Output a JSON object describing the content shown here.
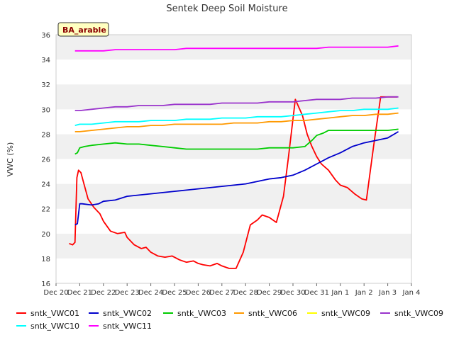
{
  "chart_data": {
    "type": "line",
    "title": "Sentek Deep Soil Moisture",
    "xlabel": "",
    "ylabel": "VWC (%)",
    "badge": "BA_arable",
    "ylim": [
      16,
      36
    ],
    "yticks": [
      16,
      18,
      20,
      22,
      24,
      26,
      28,
      30,
      32,
      34,
      36
    ],
    "xlim": [
      0,
      15
    ],
    "xticks": [
      {
        "x": 0,
        "label": "Dec 20"
      },
      {
        "x": 1,
        "label": "Dec 21"
      },
      {
        "x": 2,
        "label": "Dec 22"
      },
      {
        "x": 3,
        "label": "Dec 23"
      },
      {
        "x": 4,
        "label": "Dec 24"
      },
      {
        "x": 5,
        "label": "Dec 25"
      },
      {
        "x": 6,
        "label": "Dec 26"
      },
      {
        "x": 7,
        "label": "Dec 27"
      },
      {
        "x": 8,
        "label": "Dec 28"
      },
      {
        "x": 9,
        "label": "Dec 29"
      },
      {
        "x": 10,
        "label": "Dec 30"
      },
      {
        "x": 11,
        "label": "Dec 31"
      },
      {
        "x": 12,
        "label": "Jan 1"
      },
      {
        "x": 13,
        "label": "Jan 2"
      },
      {
        "x": 14,
        "label": "Jan 3"
      },
      {
        "x": 15,
        "label": "Jan 4"
      }
    ],
    "grid": "horizontal bands",
    "legend": "bottom",
    "series": [
      {
        "name": "sntk_VWC01",
        "color": "#ff0000",
        "x": [
          0.55,
          0.7,
          0.8,
          0.88,
          0.95,
          1.05,
          1.15,
          1.35,
          1.6,
          1.85,
          2.0,
          2.3,
          2.6,
          2.9,
          3.0,
          3.3,
          3.6,
          3.8,
          4.0,
          4.3,
          4.6,
          4.9,
          5.2,
          5.5,
          5.8,
          6.0,
          6.2,
          6.5,
          6.8,
          7.0,
          7.3,
          7.6,
          7.9,
          8.2,
          8.5,
          8.7,
          9.0,
          9.3,
          9.6,
          9.8,
          10.1,
          10.4,
          10.6,
          10.8,
          11.0,
          11.2,
          11.5,
          11.8,
          12.0,
          12.3,
          12.6,
          12.9,
          13.1,
          13.4,
          13.7,
          13.9,
          14.2,
          14.4
        ],
        "y": [
          19.2,
          19.1,
          19.3,
          24.5,
          25.1,
          24.9,
          24.2,
          22.8,
          22.1,
          21.6,
          21.0,
          20.2,
          20.0,
          20.1,
          19.7,
          19.1,
          18.8,
          18.9,
          18.5,
          18.2,
          18.1,
          18.2,
          17.9,
          17.7,
          17.8,
          17.6,
          17.5,
          17.4,
          17.6,
          17.4,
          17.2,
          17.2,
          18.5,
          20.7,
          21.1,
          21.5,
          21.3,
          20.9,
          23.0,
          26.0,
          30.8,
          29.5,
          28.0,
          27.0,
          26.2,
          25.6,
          25.1,
          24.3,
          23.9,
          23.7,
          23.2,
          22.8,
          22.7,
          27.0,
          31.0,
          31.0,
          31.0,
          31.0
        ]
      },
      {
        "name": "sntk_VWC02",
        "color": "#0000cc",
        "x": [
          0.8,
          0.9,
          1.0,
          1.1,
          1.5,
          1.8,
          2.0,
          2.5,
          3.0,
          3.5,
          4.0,
          4.5,
          5.0,
          5.5,
          6.0,
          6.5,
          7.0,
          7.5,
          8.0,
          8.5,
          9.0,
          9.5,
          10.0,
          10.5,
          11.0,
          11.5,
          12.0,
          12.5,
          13.0,
          13.5,
          14.0,
          14.45
        ],
        "y": [
          20.7,
          20.8,
          22.4,
          22.4,
          22.3,
          22.4,
          22.6,
          22.7,
          23.0,
          23.1,
          23.2,
          23.3,
          23.4,
          23.5,
          23.6,
          23.7,
          23.8,
          23.9,
          24.0,
          24.2,
          24.4,
          24.5,
          24.7,
          25.1,
          25.6,
          26.1,
          26.5,
          27.0,
          27.3,
          27.5,
          27.7,
          28.2
        ]
      },
      {
        "name": "sntk_VWC03",
        "color": "#00cc00",
        "x": [
          0.8,
          0.9,
          1.0,
          1.2,
          1.5,
          2.0,
          2.5,
          3.0,
          3.5,
          4.0,
          4.5,
          5.0,
          5.5,
          6.0,
          6.5,
          7.0,
          7.5,
          8.0,
          8.5,
          9.0,
          9.5,
          10.0,
          10.5,
          10.8,
          11.0,
          11.3,
          11.5,
          12.0,
          12.5,
          13.0,
          13.5,
          14.0,
          14.45
        ],
        "y": [
          26.4,
          26.5,
          26.9,
          27.0,
          27.1,
          27.2,
          27.3,
          27.2,
          27.2,
          27.1,
          27.0,
          26.9,
          26.8,
          26.8,
          26.8,
          26.8,
          26.8,
          26.8,
          26.8,
          26.9,
          26.9,
          26.9,
          27.0,
          27.5,
          27.9,
          28.1,
          28.3,
          28.3,
          28.3,
          28.3,
          28.3,
          28.3,
          28.4
        ]
      },
      {
        "name": "sntk_VWC06",
        "color": "#ff9900",
        "x": [
          0.8,
          1.0,
          1.5,
          2.0,
          2.5,
          3.0,
          3.5,
          4.0,
          4.5,
          5.0,
          5.5,
          6.0,
          6.5,
          7.0,
          7.5,
          8.0,
          8.5,
          9.0,
          9.5,
          10.0,
          10.5,
          11.0,
          11.5,
          12.0,
          12.5,
          13.0,
          13.5,
          14.0,
          14.45
        ],
        "y": [
          28.2,
          28.2,
          28.3,
          28.4,
          28.5,
          28.6,
          28.6,
          28.7,
          28.7,
          28.8,
          28.8,
          28.8,
          28.8,
          28.8,
          28.9,
          28.9,
          28.9,
          29.0,
          29.0,
          29.1,
          29.1,
          29.2,
          29.3,
          29.4,
          29.5,
          29.5,
          29.6,
          29.6,
          29.7
        ]
      },
      {
        "name": "sntk_VWC09",
        "color": "#ffff00",
        "x": [],
        "y": []
      },
      {
        "name": "sntk_VWC09",
        "color": "#9933cc",
        "x": [
          0.8,
          1.0,
          1.5,
          2.0,
          2.5,
          3.0,
          3.5,
          4.0,
          4.5,
          5.0,
          5.5,
          6.0,
          6.5,
          7.0,
          7.5,
          8.0,
          8.5,
          9.0,
          9.5,
          10.0,
          10.5,
          11.0,
          11.5,
          12.0,
          12.5,
          13.0,
          13.5,
          14.0,
          14.45
        ],
        "y": [
          29.9,
          29.9,
          30.0,
          30.1,
          30.2,
          30.2,
          30.3,
          30.3,
          30.3,
          30.4,
          30.4,
          30.4,
          30.4,
          30.5,
          30.5,
          30.5,
          30.5,
          30.6,
          30.6,
          30.6,
          30.7,
          30.8,
          30.8,
          30.8,
          30.9,
          30.9,
          30.9,
          31.0,
          31.0
        ]
      },
      {
        "name": "sntk_VWC10",
        "color": "#00ffff",
        "x": [
          0.8,
          1.0,
          1.5,
          2.0,
          2.5,
          3.0,
          3.5,
          4.0,
          4.5,
          5.0,
          5.5,
          6.0,
          6.5,
          7.0,
          7.5,
          8.0,
          8.5,
          9.0,
          9.5,
          10.0,
          10.5,
          11.0,
          11.5,
          12.0,
          12.5,
          13.0,
          13.5,
          14.0,
          14.45
        ],
        "y": [
          28.7,
          28.8,
          28.8,
          28.9,
          29.0,
          29.0,
          29.0,
          29.1,
          29.1,
          29.1,
          29.2,
          29.2,
          29.2,
          29.3,
          29.3,
          29.3,
          29.4,
          29.4,
          29.4,
          29.5,
          29.6,
          29.7,
          29.8,
          29.9,
          29.9,
          30.0,
          30.0,
          30.0,
          30.1
        ]
      },
      {
        "name": "sntk_VWC11",
        "color": "#ff00ff",
        "x": [
          0.8,
          1.0,
          1.5,
          2.0,
          2.5,
          3.0,
          3.5,
          4.0,
          4.5,
          5.0,
          5.5,
          6.0,
          6.5,
          7.0,
          7.5,
          8.0,
          8.5,
          9.0,
          9.5,
          10.0,
          10.5,
          11.0,
          11.5,
          12.0,
          12.5,
          13.0,
          13.5,
          14.0,
          14.45
        ],
        "y": [
          34.7,
          34.7,
          34.7,
          34.7,
          34.8,
          34.8,
          34.8,
          34.8,
          34.8,
          34.8,
          34.9,
          34.9,
          34.9,
          34.9,
          34.9,
          34.9,
          34.9,
          34.9,
          34.9,
          34.9,
          34.9,
          34.9,
          35.0,
          35.0,
          35.0,
          35.0,
          35.0,
          35.0,
          35.1
        ]
      }
    ]
  }
}
